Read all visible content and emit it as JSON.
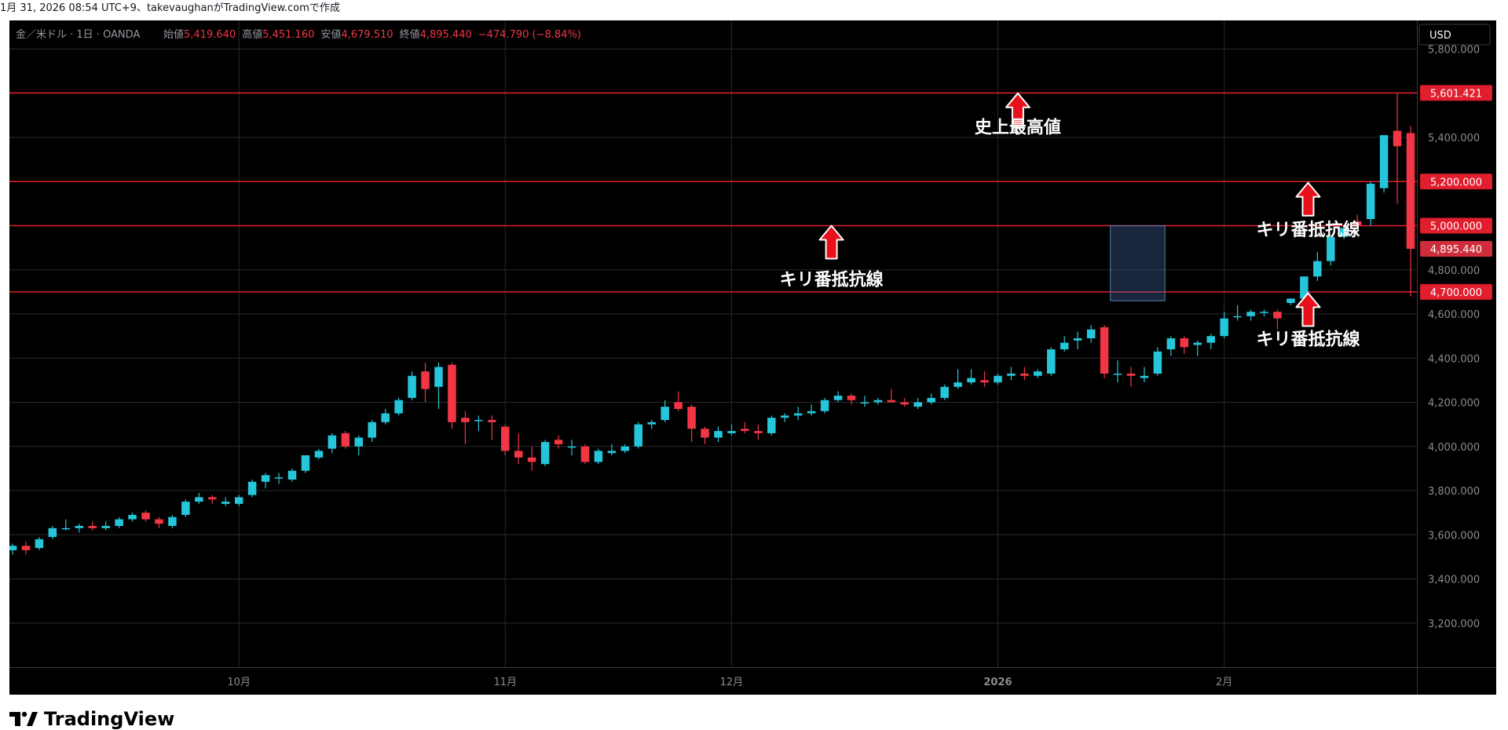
{
  "header": {
    "attribution": "1月 31, 2026 08:54 UTC+9、takevaughanがTradingView.comで作成"
  },
  "legend": {
    "symbol": "金／米ドル · 1日 · OANDA",
    "open_label": "始値",
    "open_value": "5,419.640",
    "high_label": "高値",
    "high_value": "5,451.160",
    "low_label": "安値",
    "low_value": "4,679.510",
    "close_label": "終値",
    "close_value": "4,895.440",
    "change": "−474.790 (−8.84%)"
  },
  "currency_button": "USD",
  "brand": "TradingView",
  "colors": {
    "up": "#26c6da",
    "down": "#f23645",
    "level": "#e01e2e",
    "grid": "#2a2a2a",
    "axis_text": "#8c8c8c",
    "legend_text": "#9598a1",
    "legend_value": "#f23645",
    "annotation_text": "#ffffff",
    "arrow": "#e8101a",
    "last_price_bg": "#f23645"
  },
  "chart_data": {
    "type": "candlestick",
    "y_axis": {
      "range": [
        3000,
        5930
      ],
      "ticks": [
        3200,
        3400,
        3600,
        3800,
        4000,
        4200,
        4400,
        4600,
        4800,
        5000,
        5200,
        5400,
        5600,
        5800
      ],
      "tick_labels": [
        "3,200.000",
        "3,400.000",
        "3,600.000",
        "3,800.000",
        "4,000.000",
        "4,200.000",
        "4,400.000",
        "4,600.000",
        "4,800.000",
        "5,000.000",
        "5,200.000",
        "5,400.000",
        "5,600.000",
        "5,800.000"
      ]
    },
    "x_axis": {
      "bar_count": 106,
      "ticks": [
        {
          "label": "10月",
          "bar": 17
        },
        {
          "label": "11月",
          "bar": 37
        },
        {
          "label": "12月",
          "bar": 54
        },
        {
          "label": "2026",
          "bar": 74,
          "bold": true
        },
        {
          "label": "2月",
          "bar": 91
        }
      ]
    },
    "price_lines": [
      {
        "value": 5601.421,
        "label": "5,601.421"
      },
      {
        "value": 5200,
        "label": "5,200.000"
      },
      {
        "value": 5000,
        "label": "5,000.000"
      },
      {
        "value": 4700,
        "label": "4,700.000"
      }
    ],
    "last_price": {
      "value": 4895.44,
      "label": "4,895.440"
    },
    "highlight_box": {
      "bar_start": 83,
      "bar_end": 86,
      "low": 4660,
      "high": 5000
    },
    "annotations": [
      {
        "text": "史上最高値",
        "bar": 75.5,
        "price": 5420,
        "arrow_price": 5600
      },
      {
        "text": "キリ番抵抗線",
        "bar": 61.5,
        "price": 4730,
        "arrow_price": 5000
      },
      {
        "text": "キリ番抵抗線",
        "bar": 97.3,
        "price": 4955,
        "arrow_price": 5195
      },
      {
        "text": "キリ番抵抗線",
        "bar": 97.3,
        "price": 4460,
        "arrow_price": 4695
      }
    ],
    "candles": [
      {
        "o": 3530,
        "h": 3560,
        "l": 3510,
        "c": 3550
      },
      {
        "o": 3550,
        "h": 3570,
        "l": 3510,
        "c": 3530
      },
      {
        "o": 3540,
        "h": 3590,
        "l": 3530,
        "c": 3580
      },
      {
        "o": 3590,
        "h": 3640,
        "l": 3580,
        "c": 3630
      },
      {
        "o": 3630,
        "h": 3670,
        "l": 3620,
        "c": 3630
      },
      {
        "o": 3630,
        "h": 3650,
        "l": 3610,
        "c": 3640
      },
      {
        "o": 3640,
        "h": 3660,
        "l": 3620,
        "c": 3630
      },
      {
        "o": 3630,
        "h": 3660,
        "l": 3620,
        "c": 3640
      },
      {
        "o": 3640,
        "h": 3680,
        "l": 3630,
        "c": 3670
      },
      {
        "o": 3670,
        "h": 3700,
        "l": 3660,
        "c": 3690
      },
      {
        "o": 3700,
        "h": 3710,
        "l": 3660,
        "c": 3670
      },
      {
        "o": 3670,
        "h": 3680,
        "l": 3630,
        "c": 3650
      },
      {
        "o": 3640,
        "h": 3690,
        "l": 3630,
        "c": 3680
      },
      {
        "o": 3690,
        "h": 3760,
        "l": 3680,
        "c": 3750
      },
      {
        "o": 3750,
        "h": 3790,
        "l": 3740,
        "c": 3770
      },
      {
        "o": 3770,
        "h": 3780,
        "l": 3740,
        "c": 3760
      },
      {
        "o": 3740,
        "h": 3770,
        "l": 3730,
        "c": 3750
      },
      {
        "o": 3740,
        "h": 3780,
        "l": 3730,
        "c": 3770
      },
      {
        "o": 3780,
        "h": 3850,
        "l": 3770,
        "c": 3840
      },
      {
        "o": 3840,
        "h": 3880,
        "l": 3810,
        "c": 3870
      },
      {
        "o": 3860,
        "h": 3880,
        "l": 3830,
        "c": 3860
      },
      {
        "o": 3850,
        "h": 3900,
        "l": 3840,
        "c": 3890
      },
      {
        "o": 3890,
        "h": 3960,
        "l": 3880,
        "c": 3960
      },
      {
        "o": 3950,
        "h": 3990,
        "l": 3940,
        "c": 3980
      },
      {
        "o": 3990,
        "h": 4060,
        "l": 3970,
        "c": 4050
      },
      {
        "o": 4060,
        "h": 4070,
        "l": 3990,
        "c": 4000
      },
      {
        "o": 4000,
        "h": 4050,
        "l": 3960,
        "c": 4040
      },
      {
        "o": 4040,
        "h": 4120,
        "l": 4020,
        "c": 4110
      },
      {
        "o": 4110,
        "h": 4170,
        "l": 4100,
        "c": 4150
      },
      {
        "o": 4150,
        "h": 4220,
        "l": 4140,
        "c": 4210
      },
      {
        "o": 4220,
        "h": 4340,
        "l": 4210,
        "c": 4320
      },
      {
        "o": 4340,
        "h": 4380,
        "l": 4200,
        "c": 4260
      },
      {
        "o": 4270,
        "h": 4380,
        "l": 4170,
        "c": 4360
      },
      {
        "o": 4370,
        "h": 4380,
        "l": 4080,
        "c": 4110
      },
      {
        "o": 4130,
        "h": 4160,
        "l": 4010,
        "c": 4110
      },
      {
        "o": 4120,
        "h": 4140,
        "l": 4070,
        "c": 4120
      },
      {
        "o": 4120,
        "h": 4140,
        "l": 4030,
        "c": 4110
      },
      {
        "o": 4090,
        "h": 4100,
        "l": 3960,
        "c": 3980
      },
      {
        "o": 3980,
        "h": 4060,
        "l": 3920,
        "c": 3950
      },
      {
        "o": 3950,
        "h": 4000,
        "l": 3890,
        "c": 3930
      },
      {
        "o": 3920,
        "h": 4030,
        "l": 3910,
        "c": 4020
      },
      {
        "o": 4030,
        "h": 4050,
        "l": 3990,
        "c": 4010
      },
      {
        "o": 4000,
        "h": 4030,
        "l": 3960,
        "c": 4000
      },
      {
        "o": 4000,
        "h": 4010,
        "l": 3920,
        "c": 3930
      },
      {
        "o": 3930,
        "h": 3990,
        "l": 3920,
        "c": 3980
      },
      {
        "o": 3970,
        "h": 4010,
        "l": 3960,
        "c": 3980
      },
      {
        "o": 3980,
        "h": 4010,
        "l": 3970,
        "c": 4000
      },
      {
        "o": 4000,
        "h": 4110,
        "l": 3990,
        "c": 4100
      },
      {
        "o": 4100,
        "h": 4120,
        "l": 4080,
        "c": 4110
      },
      {
        "o": 4120,
        "h": 4210,
        "l": 4110,
        "c": 4180
      },
      {
        "o": 4200,
        "h": 4250,
        "l": 4160,
        "c": 4170
      },
      {
        "o": 4180,
        "h": 4190,
        "l": 4020,
        "c": 4080
      },
      {
        "o": 4080,
        "h": 4090,
        "l": 4010,
        "c": 4040
      },
      {
        "o": 4040,
        "h": 4090,
        "l": 4020,
        "c": 4070
      },
      {
        "o": 4060,
        "h": 4100,
        "l": 4050,
        "c": 4070
      },
      {
        "o": 4080,
        "h": 4110,
        "l": 4060,
        "c": 4070
      },
      {
        "o": 4070,
        "h": 4100,
        "l": 4030,
        "c": 4060
      },
      {
        "o": 4060,
        "h": 4140,
        "l": 4050,
        "c": 4130
      },
      {
        "o": 4130,
        "h": 4150,
        "l": 4110,
        "c": 4140
      },
      {
        "o": 4140,
        "h": 4180,
        "l": 4120,
        "c": 4150
      },
      {
        "o": 4150,
        "h": 4190,
        "l": 4140,
        "c": 4160
      },
      {
        "o": 4160,
        "h": 4220,
        "l": 4150,
        "c": 4210
      },
      {
        "o": 4210,
        "h": 4250,
        "l": 4200,
        "c": 4230
      },
      {
        "o": 4230,
        "h": 4240,
        "l": 4190,
        "c": 4210
      },
      {
        "o": 4200,
        "h": 4230,
        "l": 4180,
        "c": 4200
      },
      {
        "o": 4200,
        "h": 4220,
        "l": 4190,
        "c": 4210
      },
      {
        "o": 4210,
        "h": 4260,
        "l": 4200,
        "c": 4200
      },
      {
        "o": 4200,
        "h": 4220,
        "l": 4180,
        "c": 4190
      },
      {
        "o": 4180,
        "h": 4220,
        "l": 4170,
        "c": 4200
      },
      {
        "o": 4200,
        "h": 4240,
        "l": 4190,
        "c": 4220
      },
      {
        "o": 4220,
        "h": 4280,
        "l": 4210,
        "c": 4270
      },
      {
        "o": 4270,
        "h": 4350,
        "l": 4260,
        "c": 4290
      },
      {
        "o": 4290,
        "h": 4350,
        "l": 4280,
        "c": 4310
      },
      {
        "o": 4300,
        "h": 4340,
        "l": 4270,
        "c": 4290
      },
      {
        "o": 4290,
        "h": 4330,
        "l": 4280,
        "c": 4320
      },
      {
        "o": 4320,
        "h": 4360,
        "l": 4300,
        "c": 4330
      },
      {
        "o": 4330,
        "h": 4360,
        "l": 4300,
        "c": 4320
      },
      {
        "o": 4320,
        "h": 4350,
        "l": 4310,
        "c": 4340
      },
      {
        "o": 4330,
        "h": 4450,
        "l": 4320,
        "c": 4440
      },
      {
        "o": 4440,
        "h": 4500,
        "l": 4430,
        "c": 4470
      },
      {
        "o": 4480,
        "h": 4520,
        "l": 4440,
        "c": 4490
      },
      {
        "o": 4490,
        "h": 4550,
        "l": 4470,
        "c": 4530
      },
      {
        "o": 4540,
        "h": 4550,
        "l": 4310,
        "c": 4330
      },
      {
        "o": 4330,
        "h": 4390,
        "l": 4290,
        "c": 4330
      },
      {
        "o": 4330,
        "h": 4360,
        "l": 4270,
        "c": 4320
      },
      {
        "o": 4310,
        "h": 4360,
        "l": 4290,
        "c": 4320
      },
      {
        "o": 4330,
        "h": 4450,
        "l": 4320,
        "c": 4430
      },
      {
        "o": 4440,
        "h": 4500,
        "l": 4410,
        "c": 4490
      },
      {
        "o": 4490,
        "h": 4500,
        "l": 4420,
        "c": 4450
      },
      {
        "o": 4460,
        "h": 4480,
        "l": 4410,
        "c": 4470
      },
      {
        "o": 4470,
        "h": 4510,
        "l": 4440,
        "c": 4500
      },
      {
        "o": 4500,
        "h": 4610,
        "l": 4490,
        "c": 4580
      },
      {
        "o": 4590,
        "h": 4640,
        "l": 4570,
        "c": 4590
      },
      {
        "o": 4590,
        "h": 4620,
        "l": 4570,
        "c": 4610
      },
      {
        "o": 4610,
        "h": 4620,
        "l": 4590,
        "c": 4610
      },
      {
        "o": 4610,
        "h": 4620,
        "l": 4530,
        "c": 4580
      },
      {
        "o": 4650,
        "h": 4670,
        "l": 4640,
        "c": 4670
      },
      {
        "o": 4670,
        "h": 4770,
        "l": 4660,
        "c": 4770
      },
      {
        "o": 4770,
        "h": 4880,
        "l": 4750,
        "c": 4840
      },
      {
        "o": 4840,
        "h": 4950,
        "l": 4820,
        "c": 4950
      },
      {
        "o": 4950,
        "h": 4990,
        "l": 4940,
        "c": 4990
      },
      {
        "o": 5020,
        "h": 5050,
        "l": 4990,
        "c": 5000
      },
      {
        "o": 5030,
        "h": 5200,
        "l": 5000,
        "c": 5190
      },
      {
        "o": 5170,
        "h": 5410,
        "l": 5150,
        "c": 5410
      },
      {
        "o": 5430,
        "h": 5600,
        "l": 5100,
        "c": 5360
      },
      {
        "o": 5419.64,
        "h": 5451.16,
        "l": 4679.51,
        "c": 4895.44
      }
    ]
  }
}
